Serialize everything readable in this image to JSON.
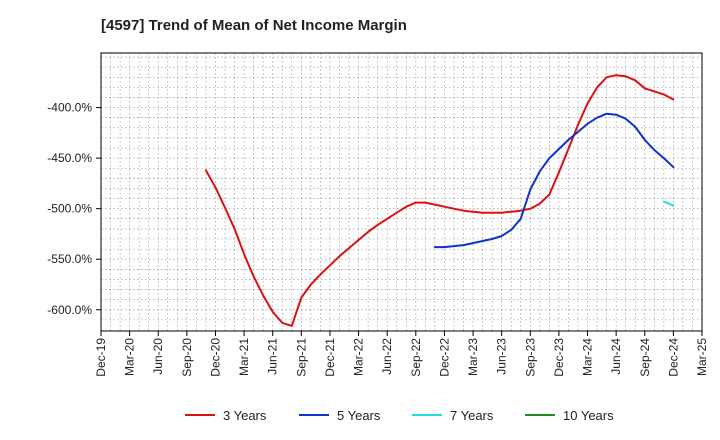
{
  "chart_data": {
    "type": "line",
    "title": "[4597]  Trend of Mean of Net Income Margin",
    "xlabel": "",
    "ylabel": "",
    "x_ticks": [
      "Dec-19",
      "Mar-20",
      "Jun-20",
      "Sep-20",
      "Dec-20",
      "Mar-21",
      "Jun-21",
      "Sep-21",
      "Dec-21",
      "Mar-22",
      "Jun-22",
      "Sep-22",
      "Dec-22",
      "Mar-23",
      "Jun-23",
      "Sep-23",
      "Dec-23",
      "Mar-24",
      "Jun-24",
      "Sep-24",
      "Dec-24",
      "Mar-25"
    ],
    "y_ticks": [
      -400,
      -450,
      -500,
      -550,
      -600
    ],
    "y_tick_labels": [
      "-400.0%",
      "-450.0%",
      "-500.0%",
      "-550.0%",
      "-600.0%"
    ],
    "ylim": [
      -621,
      -346
    ],
    "grid": true,
    "legend_position": "bottom",
    "series": [
      {
        "name": "3 Years",
        "color": "#dd1111",
        "points": [
          [
            "Nov-20",
            -462
          ],
          [
            "Dec-20",
            -479
          ],
          [
            "Jan-21",
            -499
          ],
          [
            "Feb-21",
            -520
          ],
          [
            "Mar-21",
            -545
          ],
          [
            "Apr-21",
            -567
          ],
          [
            "May-21",
            -586
          ],
          [
            "Jun-21",
            -602
          ],
          [
            "Jul-21",
            -613
          ],
          [
            "Aug-21",
            -616
          ],
          [
            "Sep-21",
            -588
          ],
          [
            "Oct-21",
            -575
          ],
          [
            "Nov-21",
            -565
          ],
          [
            "Dec-21",
            -556
          ],
          [
            "Jan-22",
            -547
          ],
          [
            "Feb-22",
            -539
          ],
          [
            "Mar-22",
            -531
          ],
          [
            "Apr-22",
            -523
          ],
          [
            "May-22",
            -516
          ],
          [
            "Jun-22",
            -510
          ],
          [
            "Jul-22",
            -504
          ],
          [
            "Aug-22",
            -498
          ],
          [
            "Sep-22",
            -494
          ],
          [
            "Oct-22",
            -494
          ],
          [
            "Nov-22",
            -496
          ],
          [
            "Dec-22",
            -498
          ],
          [
            "Jan-23",
            -500
          ],
          [
            "Feb-23",
            -502
          ],
          [
            "Mar-23",
            -503
          ],
          [
            "Apr-23",
            -504
          ],
          [
            "May-23",
            -504
          ],
          [
            "Jun-23",
            -504
          ],
          [
            "Jul-23",
            -503
          ],
          [
            "Aug-23",
            -502
          ],
          [
            "Sep-23",
            -500
          ],
          [
            "Oct-23",
            -495
          ],
          [
            "Nov-23",
            -486
          ],
          [
            "Dec-23",
            -464
          ],
          [
            "Jan-24",
            -441
          ],
          [
            "Feb-24",
            -417
          ],
          [
            "Mar-24",
            -396
          ],
          [
            "Apr-24",
            -380
          ],
          [
            "May-24",
            -370
          ],
          [
            "Jun-24",
            -368
          ],
          [
            "Jul-24",
            -369
          ],
          [
            "Aug-24",
            -373
          ],
          [
            "Sep-24",
            -381
          ],
          [
            "Oct-24",
            -384
          ],
          [
            "Nov-24",
            -387
          ],
          [
            "Dec-24",
            -392
          ]
        ]
      },
      {
        "name": "5 Years",
        "color": "#1133cc",
        "points": [
          [
            "Nov-22",
            -538
          ],
          [
            "Dec-22",
            -538
          ],
          [
            "Jan-23",
            -537
          ],
          [
            "Feb-23",
            -536
          ],
          [
            "Mar-23",
            -534
          ],
          [
            "Apr-23",
            -532
          ],
          [
            "May-23",
            -530
          ],
          [
            "Jun-23",
            -527
          ],
          [
            "Jul-23",
            -521
          ],
          [
            "Aug-23",
            -510
          ],
          [
            "Sep-23",
            -481
          ],
          [
            "Oct-23",
            -463
          ],
          [
            "Nov-23",
            -450
          ],
          [
            "Dec-23",
            -441
          ],
          [
            "Jan-24",
            -432
          ],
          [
            "Feb-24",
            -424
          ],
          [
            "Mar-24",
            -416
          ],
          [
            "Apr-24",
            -410
          ],
          [
            "May-24",
            -406
          ],
          [
            "Jun-24",
            -407
          ],
          [
            "Jul-24",
            -411
          ],
          [
            "Aug-24",
            -419
          ],
          [
            "Sep-24",
            -432
          ],
          [
            "Oct-24",
            -442
          ],
          [
            "Nov-24",
            -450
          ],
          [
            "Dec-24",
            -459
          ]
        ]
      },
      {
        "name": "7 Years",
        "color": "#22dddd",
        "points": [
          [
            "Nov-24",
            -493
          ],
          [
            "Dec-24",
            -497
          ]
        ]
      },
      {
        "name": "10 Years",
        "color": "#228822",
        "points": []
      }
    ]
  }
}
